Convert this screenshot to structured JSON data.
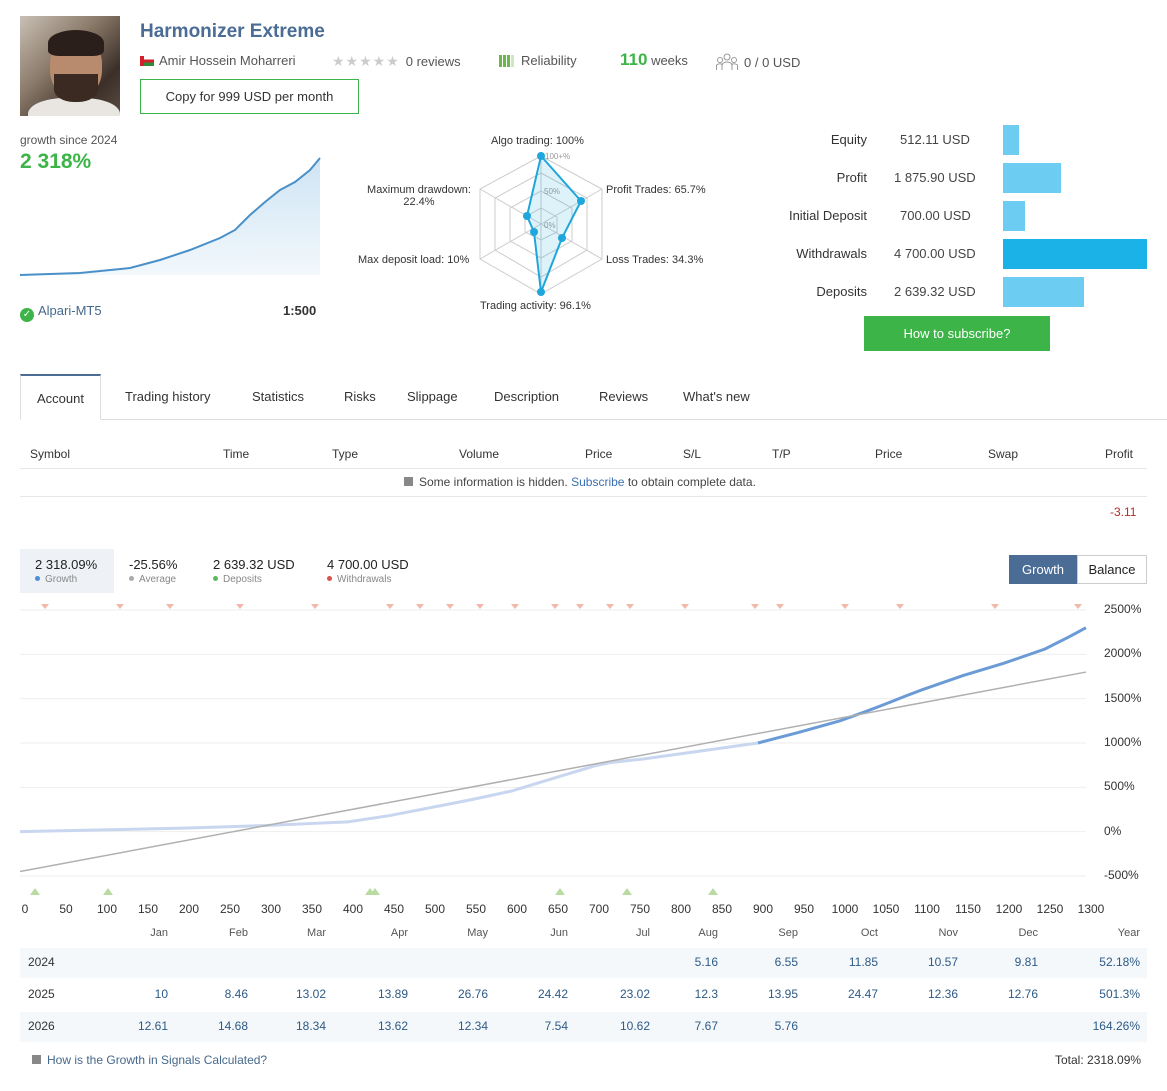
{
  "signal": {
    "title": "Harmonizer Extreme",
    "author": "Amir Hossein Moharreri",
    "reviews": "0 reviews",
    "reliability": "Reliability",
    "weeks_num": "110",
    "weeks_label": "weeks",
    "subscribers": "0 / 0 USD",
    "copy_button": "Copy for 999 USD per month"
  },
  "growth": {
    "label": "growth since 2024",
    "value": "2 318%",
    "broker": "Alpari-MT5",
    "leverage": "1:500"
  },
  "radar": {
    "algo": "Algo trading: 100%",
    "profit_trades": "Profit Trades: 65.7%",
    "loss_trades": "Loss Trades: 34.3%",
    "trading_activity": "Trading activity: 96.1%",
    "max_deposit_load": "Max deposit load: 10%",
    "max_drawdown_l1": "Maximum drawdown:",
    "max_drawdown_l2": "22.4%",
    "r100": "100+%",
    "r50": "50%",
    "r0": "0%",
    "values": {
      "algo": 100,
      "profit": 65.7,
      "loss": 34.3,
      "activity": 96.1,
      "deposit_load": 10,
      "drawdown": 22.4
    }
  },
  "account": {
    "equity_label": "Equity",
    "equity": "512.11 USD",
    "equity_frac": 0.11,
    "profit_label": "Profit",
    "profit": "1 875.90 USD",
    "profit_frac": 0.4,
    "initial_label": "Initial Deposit",
    "initial": "700.00 USD",
    "initial_frac": 0.15,
    "withdrawals_label": "Withdrawals",
    "withdrawals": "4 700.00 USD",
    "withdrawals_frac": 1.0,
    "deposits_label": "Deposits",
    "deposits": "2 639.32 USD",
    "deposits_frac": 0.56,
    "subscribe_button": "How to subscribe?"
  },
  "tabs": [
    "Account",
    "Trading history",
    "Statistics",
    "Risks",
    "Slippage",
    "Description",
    "Reviews",
    "What's new"
  ],
  "positions": {
    "headers": [
      "Symbol",
      "Time",
      "Type",
      "Volume",
      "Price",
      "S/L",
      "T/P",
      "Price",
      "Swap",
      "Profit"
    ],
    "note_pre": "Some information is hidden.",
    "note_link": "Subscribe",
    "note_post": "to obtain complete data.",
    "profit_total": "-3.11"
  },
  "legend": {
    "growth_value": "2 318.09%",
    "growth_label": "Growth",
    "average_value": "-25.56%",
    "average_label": "Average",
    "deposits_value": "2 639.32 USD",
    "deposits_label": "Deposits",
    "withdrawals_value": "4 700.00 USD",
    "withdrawals_label": "Withdrawals",
    "btn_growth": "Growth",
    "btn_balance": "Balance"
  },
  "chart_data": {
    "type": "line",
    "x_ticks": [
      "0",
      "50",
      "100",
      "150",
      "200",
      "250",
      "300",
      "350",
      "400",
      "450",
      "500",
      "550",
      "600",
      "650",
      "700",
      "750",
      "800",
      "850",
      "900",
      "950",
      "1000",
      "1050",
      "1100",
      "1150",
      "1200",
      "1250",
      "1300"
    ],
    "y_ticks": [
      "2500%",
      "2000%",
      "1500%",
      "1000%",
      "500%",
      "0%",
      "-500%"
    ],
    "xlim": [
      0,
      1300
    ],
    "ylim": [
      -500,
      2500
    ],
    "series": [
      {
        "x": [
          0,
          100,
          200,
          300,
          350,
          400,
          450,
          500,
          550,
          600,
          650,
          700,
          720,
          740,
          760,
          900
        ],
        "y": [
          0,
          20,
          40,
          70,
          90,
          110,
          180,
          270,
          360,
          460,
          600,
          740,
          780,
          800,
          820,
          1000
        ]
      },
      {
        "x": [
          900,
          950,
          1000,
          1030,
          1050,
          1080,
          1100,
          1150,
          1200,
          1250,
          1280,
          1300
        ],
        "y": [
          1000,
          1120,
          1250,
          1350,
          1420,
          1530,
          1600,
          1760,
          1900,
          2060,
          2200,
          2300
        ]
      },
      {
        "x": [
          0,
          1300
        ],
        "y": [
          -450,
          1800
        ]
      }
    ],
    "colors": {
      "growth": "#6b9bd6",
      "history": "#c9d6ef",
      "trend": "#b0b0b0"
    }
  },
  "monthly": {
    "months": [
      "Jan",
      "Feb",
      "Mar",
      "Apr",
      "May",
      "Jun",
      "Jul",
      "Aug",
      "Sep",
      "Oct",
      "Nov",
      "Dec",
      "Year"
    ],
    "rows": [
      {
        "year": "2024",
        "vals": [
          "",
          "",
          "",
          "",
          "",
          "",
          "",
          "5.16",
          "6.55",
          "11.85",
          "10.57",
          "9.81",
          "52.18%"
        ]
      },
      {
        "year": "2025",
        "vals": [
          "10",
          "8.46",
          "13.02",
          "13.89",
          "26.76",
          "24.42",
          "23.02",
          "12.3",
          "13.95",
          "24.47",
          "12.36",
          "12.76",
          "501.3%"
        ]
      },
      {
        "year": "2026",
        "vals": [
          "12.61",
          "14.68",
          "18.34",
          "13.62",
          "12.34",
          "7.54",
          "10.62",
          "7.67",
          "5.76",
          "",
          "",
          "",
          "164.26%"
        ]
      }
    ],
    "footer_link": "How is the Growth in Signals Calculated?",
    "total": "Total: 2318.09%"
  }
}
